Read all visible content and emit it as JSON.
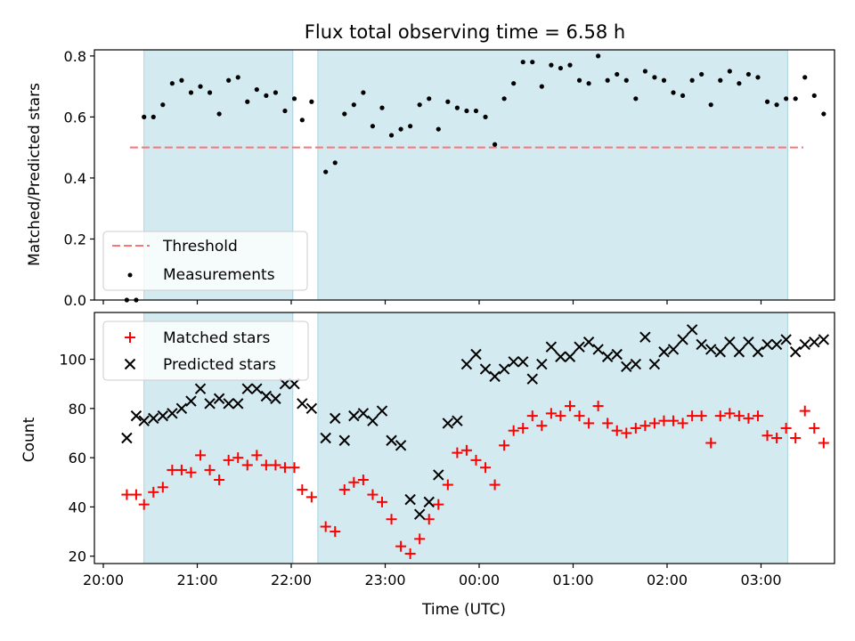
{
  "chart_data": [
    {
      "type": "scatter",
      "title": "Flux total observing time = 6.58 h",
      "xlabel": "",
      "ylabel": "Matched/Predicted stars",
      "ylim": [
        0.0,
        0.82
      ],
      "yticks": [
        "0.0",
        "0.2",
        "0.4",
        "0.6",
        "0.8"
      ],
      "xlim": [
        "20:00",
        "03:45"
      ],
      "grid": false,
      "legend_position": "lower-left",
      "threshold": {
        "name": "Threshold",
        "value": 0.5,
        "x": [
          "20:17",
          "03:27"
        ],
        "color": "#f77777"
      },
      "shaded_intervals": [
        [
          "20:26",
          "22:01"
        ],
        [
          "22:17",
          "03:17"
        ]
      ],
      "shade_color": "#d3eaf0",
      "series": [
        {
          "name": "Measurements",
          "color": "#000000",
          "x": [
            "20:15",
            "20:21",
            "20:26",
            "20:32",
            "20:38",
            "20:44",
            "20:50",
            "20:56",
            "21:02",
            "21:08",
            "21:14",
            "21:20",
            "21:26",
            "21:32",
            "21:38",
            "21:44",
            "21:50",
            "21:56",
            "22:02",
            "22:07",
            "22:13",
            "22:22",
            "22:28",
            "22:34",
            "22:40",
            "22:46",
            "22:52",
            "22:58",
            "23:04",
            "23:10",
            "23:16",
            "23:22",
            "23:28",
            "23:34",
            "23:40",
            "23:46",
            "23:52",
            "23:58",
            "00:04",
            "00:10",
            "00:16",
            "00:22",
            "00:28",
            "00:34",
            "00:40",
            "00:46",
            "00:52",
            "00:58",
            "01:04",
            "01:10",
            "01:16",
            "01:22",
            "01:28",
            "01:34",
            "01:40",
            "01:46",
            "01:52",
            "01:58",
            "02:04",
            "02:10",
            "02:16",
            "02:22",
            "02:28",
            "02:34",
            "02:40",
            "02:46",
            "02:52",
            "02:58",
            "03:04",
            "03:10",
            "03:16",
            "03:22",
            "03:28",
            "03:34",
            "03:40"
          ],
          "y": [
            0.0,
            0.0,
            0.6,
            0.6,
            0.64,
            0.71,
            0.72,
            0.68,
            0.7,
            0.68,
            0.61,
            0.72,
            0.73,
            0.65,
            0.69,
            0.67,
            0.68,
            0.62,
            0.66,
            0.59,
            0.65,
            0.42,
            0.45,
            0.61,
            0.64,
            0.68,
            0.57,
            0.63,
            0.54,
            0.56,
            0.57,
            0.64,
            0.66,
            0.56,
            0.65,
            0.63,
            0.62,
            0.62,
            0.6,
            0.51,
            0.66,
            0.71,
            0.78,
            0.78,
            0.7,
            0.77,
            0.76,
            0.77,
            0.72,
            0.71,
            0.8,
            0.72,
            0.74,
            0.72,
            0.66,
            0.75,
            0.73,
            0.72,
            0.68,
            0.67,
            0.72,
            0.74,
            0.64,
            0.72,
            0.75,
            0.71,
            0.74,
            0.73,
            0.65,
            0.64,
            0.66,
            0.66,
            0.73,
            0.67,
            0.61
          ]
        }
      ]
    },
    {
      "type": "scatter",
      "title": "",
      "xlabel": "Time (UTC)",
      "ylabel": "Count",
      "ylim": [
        17,
        119
      ],
      "yticks": [
        "20",
        "40",
        "60",
        "80",
        "100"
      ],
      "xlim": [
        "20:00",
        "03:45"
      ],
      "xticks": [
        "20:00",
        "21:00",
        "22:00",
        "23:00",
        "00:00",
        "01:00",
        "02:00",
        "03:00"
      ],
      "grid": false,
      "legend_position": "upper-left",
      "shaded_intervals": [
        [
          "20:26",
          "22:01"
        ],
        [
          "22:17",
          "03:17"
        ]
      ],
      "shade_color": "#d3eaf0",
      "series": [
        {
          "name": "Matched stars",
          "marker": "+",
          "color": "#ff0000",
          "x": [
            "20:15",
            "20:21",
            "20:26",
            "20:32",
            "20:38",
            "20:44",
            "20:50",
            "20:56",
            "21:02",
            "21:08",
            "21:14",
            "21:20",
            "21:26",
            "21:32",
            "21:38",
            "21:44",
            "21:50",
            "21:56",
            "22:02",
            "22:07",
            "22:13",
            "22:22",
            "22:28",
            "22:34",
            "22:40",
            "22:46",
            "22:52",
            "22:58",
            "23:04",
            "23:10",
            "23:16",
            "23:22",
            "23:28",
            "23:34",
            "23:40",
            "23:46",
            "23:52",
            "23:58",
            "00:04",
            "00:10",
            "00:16",
            "00:22",
            "00:28",
            "00:34",
            "00:40",
            "00:46",
            "00:52",
            "00:58",
            "01:04",
            "01:10",
            "01:16",
            "01:22",
            "01:28",
            "01:34",
            "01:40",
            "01:46",
            "01:52",
            "01:58",
            "02:04",
            "02:10",
            "02:16",
            "02:22",
            "02:28",
            "02:34",
            "02:40",
            "02:46",
            "02:52",
            "02:58",
            "03:04",
            "03:10",
            "03:16",
            "03:22",
            "03:28",
            "03:34",
            "03:40"
          ],
          "y": [
            45,
            45,
            41,
            46,
            48,
            55,
            55,
            54,
            61,
            55,
            51,
            59,
            60,
            57,
            61,
            57,
            57,
            56,
            56,
            47,
            44,
            32,
            30,
            47,
            50,
            51,
            45,
            42,
            35,
            24,
            21,
            27,
            35,
            41,
            49,
            62,
            63,
            59,
            56,
            49,
            65,
            71,
            72,
            77,
            73,
            78,
            77,
            81,
            77,
            74,
            81,
            74,
            71,
            70,
            72,
            73,
            74,
            75,
            75,
            74,
            77,
            77,
            66,
            77,
            78,
            77,
            76,
            77,
            69,
            68,
            72,
            68,
            79,
            72,
            66
          ]
        },
        {
          "name": "Predicted stars",
          "marker": "x",
          "color": "#000000",
          "x": [
            "20:15",
            "20:21",
            "20:26",
            "20:32",
            "20:38",
            "20:44",
            "20:50",
            "20:56",
            "21:02",
            "21:08",
            "21:14",
            "21:20",
            "21:26",
            "21:32",
            "21:38",
            "21:44",
            "21:50",
            "21:56",
            "22:02",
            "22:07",
            "22:13",
            "22:22",
            "22:28",
            "22:34",
            "22:40",
            "22:46",
            "22:52",
            "22:58",
            "23:04",
            "23:10",
            "23:16",
            "23:22",
            "23:28",
            "23:34",
            "23:40",
            "23:46",
            "23:52",
            "23:58",
            "00:04",
            "00:10",
            "00:16",
            "00:22",
            "00:28",
            "00:34",
            "00:40",
            "00:46",
            "00:52",
            "00:58",
            "01:04",
            "01:10",
            "01:16",
            "01:22",
            "01:28",
            "01:34",
            "01:40",
            "01:46",
            "01:52",
            "01:58",
            "02:04",
            "02:10",
            "02:16",
            "02:22",
            "02:28",
            "02:34",
            "02:40",
            "02:46",
            "02:52",
            "02:58",
            "03:04",
            "03:10",
            "03:16",
            "03:22",
            "03:28",
            "03:34",
            "03:40"
          ],
          "y": [
            68,
            77,
            75,
            76,
            77,
            78,
            80,
            83,
            88,
            82,
            84,
            82,
            82,
            88,
            88,
            85,
            84,
            90,
            90,
            82,
            80,
            68,
            76,
            67,
            77,
            78,
            75,
            79,
            67,
            65,
            43,
            37,
            42,
            53,
            74,
            75,
            98,
            102,
            96,
            93,
            96,
            99,
            99,
            92,
            98,
            105,
            101,
            101,
            105,
            107,
            104,
            101,
            102,
            97,
            98,
            109,
            98,
            103,
            104,
            108,
            112,
            106,
            104,
            103,
            107,
            103,
            107,
            103,
            106,
            106,
            108,
            103,
            106,
            107,
            108
          ]
        }
      ]
    }
  ]
}
